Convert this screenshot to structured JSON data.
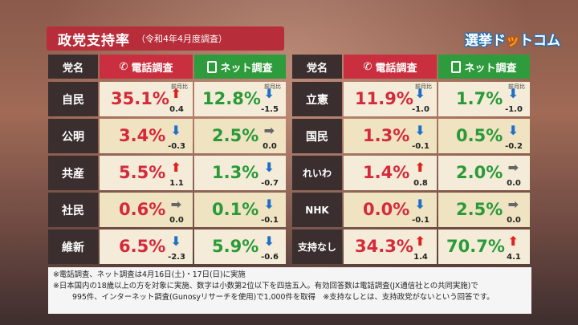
{
  "title": {
    "main": "政党支持率",
    "sub": "（令和4年4月度調査）"
  },
  "logo": {
    "part1": "選挙ド",
    "part2": "ッ",
    "part3": "トコム"
  },
  "headers": {
    "party": "党名",
    "phone": "電話調査",
    "net": "ネット調査"
  },
  "prev_label": "前月比",
  "left_rows": [
    {
      "party": "自民",
      "phone": "35.1%",
      "phone_dir": "up",
      "phone_delta": "0.4",
      "net": "12.8%",
      "net_dir": "down",
      "net_delta": "-1.5"
    },
    {
      "party": "公明",
      "phone": "3.4%",
      "phone_dir": "down",
      "phone_delta": "-0.3",
      "net": "2.5%",
      "net_dir": "flat",
      "net_delta": "0.0"
    },
    {
      "party": "共産",
      "phone": "5.5%",
      "phone_dir": "up",
      "phone_delta": "1.1",
      "net": "1.3%",
      "net_dir": "down",
      "net_delta": "-0.7"
    },
    {
      "party": "社民",
      "phone": "0.6%",
      "phone_dir": "flat",
      "phone_delta": "0.0",
      "net": "0.1%",
      "net_dir": "down",
      "net_delta": "-0.1"
    },
    {
      "party": "維新",
      "phone": "6.5%",
      "phone_dir": "down",
      "phone_delta": "-2.3",
      "net": "5.9%",
      "net_dir": "down",
      "net_delta": "-0.6"
    }
  ],
  "right_rows": [
    {
      "party": "立憲",
      "phone": "11.9%",
      "phone_dir": "down",
      "phone_delta": "-1.0",
      "net": "1.7%",
      "net_dir": "down",
      "net_delta": "-1.0"
    },
    {
      "party": "国民",
      "phone": "1.3%",
      "phone_dir": "down",
      "phone_delta": "-0.1",
      "net": "0.5%",
      "net_dir": "down",
      "net_delta": "-0.2"
    },
    {
      "party": "れいわ",
      "phone": "1.4%",
      "phone_dir": "up",
      "phone_delta": "0.8",
      "net": "2.0%",
      "net_dir": "flat",
      "net_delta": "0.0"
    },
    {
      "party": "NHK",
      "phone": "0.0%",
      "phone_dir": "down",
      "phone_delta": "-0.1",
      "net": "2.5%",
      "net_dir": "flat",
      "net_delta": "0.0"
    },
    {
      "party": "支持なし",
      "phone": "34.3%",
      "phone_dir": "up",
      "phone_delta": "1.4",
      "net": "70.7%",
      "net_dir": "up",
      "net_delta": "4.1"
    }
  ],
  "notes": [
    "※電話調査、ネット調査は4月16日(土)・17日(日)に実施",
    "※日本国内の18歳以上の方を対象に実施、数字は小数第2位以下を四捨五入。有効回答数は電話調査(JX通信社との共同実施)で",
    "995件、インターネット調査(Gunosyリサーチを使用)で1,000件を取得　※支持なしとは、支持政党がないという回答です。"
  ],
  "colors": {
    "title_bg": "#b72d3a",
    "phone": "#d42a3a",
    "net": "#2a9a38",
    "up": "#e0221f",
    "down": "#1e6fc8"
  },
  "icons": {
    "phone": "phone-icon",
    "net": "smartphone-icon",
    "up": "arrow-up-icon",
    "down": "arrow-down-icon",
    "flat": "arrow-right-icon"
  }
}
